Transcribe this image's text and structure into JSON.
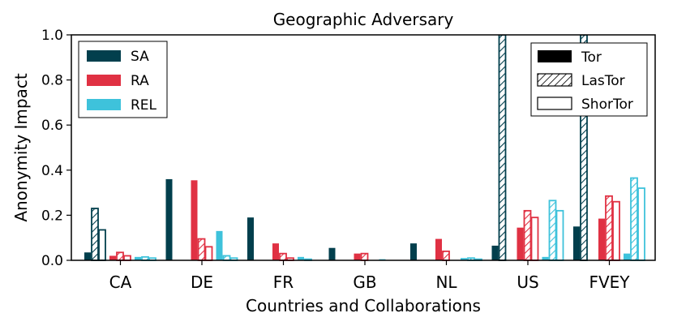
{
  "chart_data": {
    "type": "bar",
    "title": "Geographic Adversary",
    "xlabel": "Countries and Collaborations",
    "ylabel": "Anonymity Impact",
    "ylim": [
      0,
      1.0
    ],
    "yticks": [
      "0.0",
      "0.2",
      "0.4",
      "0.6",
      "0.8",
      "1.0"
    ],
    "categories": [
      "CA",
      "DE",
      "FR",
      "GB",
      "NL",
      "US",
      "FVEY"
    ],
    "metrics": [
      {
        "name": "SA",
        "color": "#023f4d"
      },
      {
        "name": "RA",
        "color": "#e03143"
      },
      {
        "name": "REL",
        "color": "#3ec2db"
      }
    ],
    "variants": [
      {
        "name": "Tor",
        "style": "solid"
      },
      {
        "name": "LasTor",
        "style": "hatched"
      },
      {
        "name": "ShorTor",
        "style": "outline"
      }
    ],
    "series": [
      {
        "metric": "SA",
        "variant": "Tor",
        "values": [
          0.035,
          0.36,
          0.19,
          0.055,
          0.075,
          0.065,
          0.15
        ]
      },
      {
        "metric": "SA",
        "variant": "LasTor",
        "values": [
          0.23,
          0.0,
          0.0,
          0.0,
          0.0,
          1.0,
          1.0
        ]
      },
      {
        "metric": "SA",
        "variant": "ShorTor",
        "values": [
          0.135,
          0.0,
          0.0,
          0.0,
          0.0,
          0.0,
          0.0
        ]
      },
      {
        "metric": "RA",
        "variant": "Tor",
        "values": [
          0.02,
          0.355,
          0.075,
          0.03,
          0.095,
          0.145,
          0.185
        ]
      },
      {
        "metric": "RA",
        "variant": "LasTor",
        "values": [
          0.035,
          0.095,
          0.03,
          0.03,
          0.04,
          0.22,
          0.285
        ]
      },
      {
        "metric": "RA",
        "variant": "ShorTor",
        "values": [
          0.02,
          0.06,
          0.01,
          0.0,
          0.0,
          0.19,
          0.26
        ]
      },
      {
        "metric": "REL",
        "variant": "Tor",
        "values": [
          0.015,
          0.13,
          0.015,
          0.005,
          0.01,
          0.015,
          0.03
        ]
      },
      {
        "metric": "REL",
        "variant": "LasTor",
        "values": [
          0.015,
          0.02,
          0.005,
          0.0,
          0.01,
          0.265,
          0.365
        ]
      },
      {
        "metric": "REL",
        "variant": "ShorTor",
        "values": [
          0.01,
          0.01,
          0.0,
          0.0,
          0.005,
          0.22,
          0.32
        ]
      }
    ],
    "legend_metrics": {
      "placement": "top-left",
      "labels": [
        "SA",
        "RA",
        "REL"
      ]
    },
    "legend_variants": {
      "placement": "top-right",
      "labels": [
        "Tor",
        "LasTor",
        "ShorTor"
      ]
    },
    "grid": false
  }
}
